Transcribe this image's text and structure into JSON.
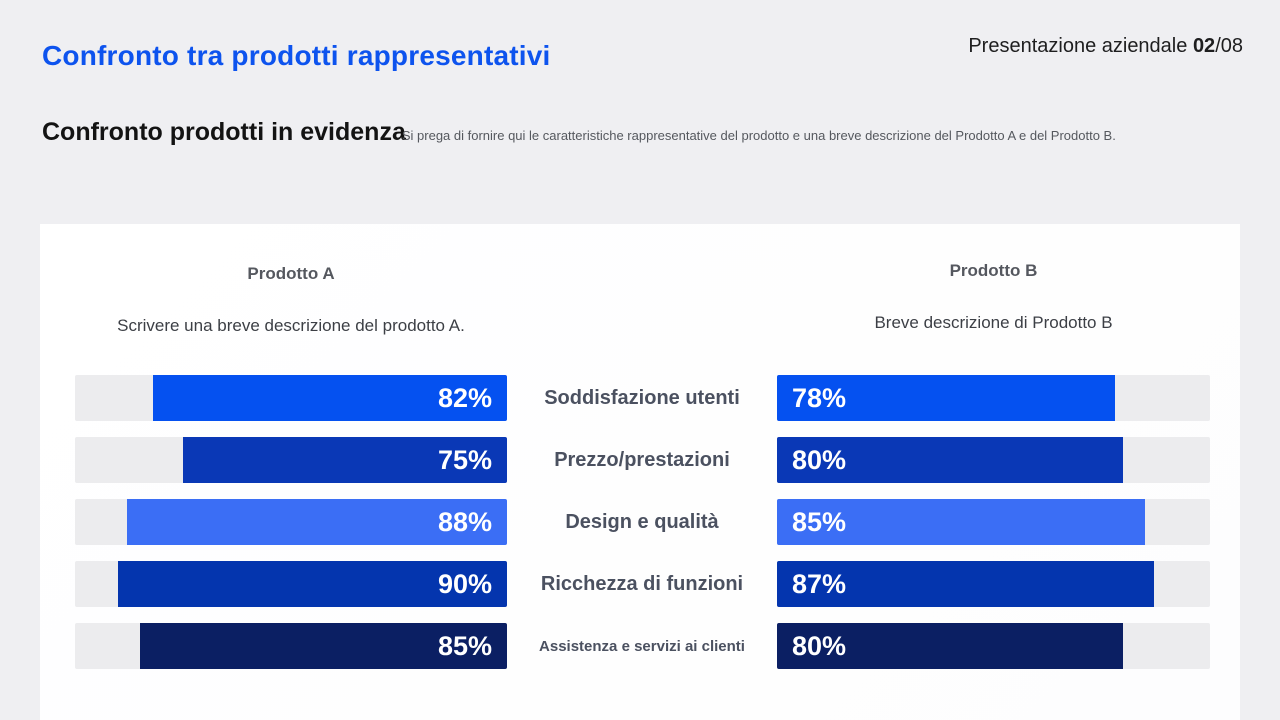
{
  "header": {
    "title": "Confronto tra prodotti rappresentativi",
    "meta_label": "Presentazione aziendale ",
    "page_current": "02",
    "page_total": "/08"
  },
  "section": {
    "heading": "Confronto prodotti in evidenza",
    "helper": "Si prega di fornire qui le caratteristiche rappresentative del prodotto e una breve descrizione del Prodotto A e del Prodotto B."
  },
  "comparison": {
    "product_a": {
      "name": "Prodotto A",
      "description": "Scrivere una breve descrizione del prodotto A."
    },
    "product_b": {
      "name": "Prodotto B",
      "description": "Breve descrizione di Prodotto B"
    },
    "rows": [
      {
        "label": "Soddisfazione utenti",
        "a_value": 82,
        "a_display": "82%",
        "b_value": 78,
        "b_display": "78%",
        "color": "#0551F0",
        "small_label": false
      },
      {
        "label": "Prezzo/prestazioni",
        "a_value": 75,
        "a_display": "75%",
        "b_value": 80,
        "b_display": "80%",
        "color": "#0A38B6",
        "small_label": false
      },
      {
        "label": "Design e qualità",
        "a_value": 88,
        "a_display": "88%",
        "b_value": 85,
        "b_display": "85%",
        "color": "#3B6EF5",
        "small_label": false
      },
      {
        "label": "Ricchezza di funzioni",
        "a_value": 90,
        "a_display": "90%",
        "b_value": 87,
        "b_display": "87%",
        "color": "#0435AE",
        "small_label": false
      },
      {
        "label": "Assistenza e servizi ai clienti",
        "a_value": 85,
        "a_display": "85%",
        "b_value": 80,
        "b_display": "80%",
        "color": "#0B1F63",
        "small_label": true
      }
    ]
  },
  "colors": {
    "accent_blue": "#0D53EE",
    "track_gray": "#ECECEE",
    "background": "#EFEFF2",
    "card": "#FFFFFF"
  },
  "chart_data": {
    "type": "bar",
    "layout": "mirrored-horizontal-bars",
    "title": "Confronto prodotti in evidenza",
    "categories": [
      "Soddisfazione utenti",
      "Prezzo/prestazioni",
      "Design e qualità",
      "Ricchezza di funzioni",
      "Assistenza e servizi ai clienti"
    ],
    "series": [
      {
        "name": "Prodotto A",
        "values": [
          82,
          75,
          88,
          90,
          85
        ]
      },
      {
        "name": "Prodotto B",
        "values": [
          78,
          80,
          85,
          87,
          80
        ]
      }
    ],
    "value_format": "percent",
    "xlim": [
      0,
      100
    ],
    "grid": false,
    "legend_position": "column-headers",
    "bar_colors_by_row": [
      "#0551F0",
      "#0A38B6",
      "#3B6EF5",
      "#0435AE",
      "#0B1F63"
    ]
  }
}
